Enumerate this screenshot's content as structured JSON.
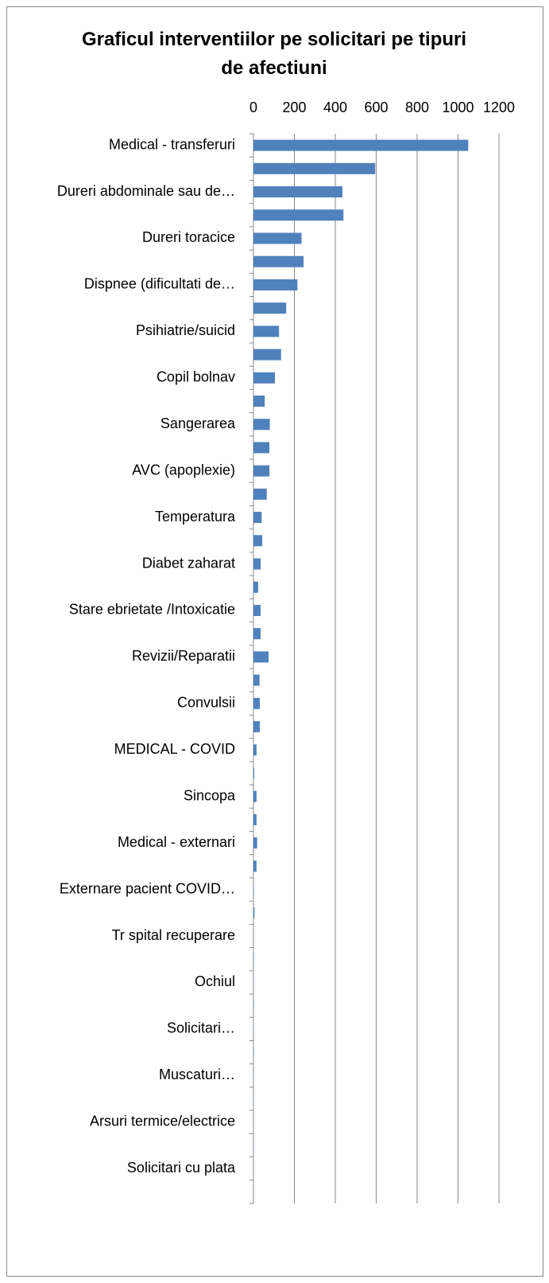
{
  "chart_data": {
    "type": "barh",
    "title": "Graficul interventiilor pe solicitari pe tipuri de afectiuni",
    "categories": [
      "Medical - transferuri",
      null,
      "Dureri abdominale sau de…",
      null,
      "Dureri toracice",
      null,
      "Dispnee (dificultati de…",
      null,
      "Psihiatrie/suicid",
      null,
      "Copil bolnav",
      null,
      "Sangerarea",
      null,
      "AVC (apoplexie)",
      null,
      "Temperatura",
      null,
      "Diabet zaharat",
      null,
      "Stare ebrietate /Intoxicatie",
      null,
      "Revizii/Reparatii",
      null,
      "Convulsii",
      null,
      "MEDICAL - COVID",
      null,
      "Sincopa",
      null,
      "Medical - externari",
      null,
      "Externare pacient COVID…",
      null,
      "Tr spital recuperare",
      null,
      "Ochiul",
      null,
      "Solicitari…",
      null,
      "Muscaturi…",
      null,
      "Arsuri termice/electrice",
      null,
      "Solicitari cu plata",
      null
    ],
    "values": [
      1050,
      595,
      435,
      440,
      235,
      245,
      215,
      160,
      125,
      135,
      105,
      55,
      80,
      78,
      78,
      65,
      40,
      43,
      35,
      23,
      35,
      35,
      74,
      30,
      31,
      31,
      15,
      4,
      15,
      15,
      18,
      15,
      2,
      5,
      1,
      2,
      1,
      2,
      1,
      2,
      1,
      1,
      0,
      1,
      0,
      0
    ],
    "color": "#4f81bd",
    "xlim": [
      0,
      1200
    ],
    "xticks": [
      0,
      200,
      400,
      600,
      800,
      1000,
      1200
    ],
    "grid": true
  }
}
